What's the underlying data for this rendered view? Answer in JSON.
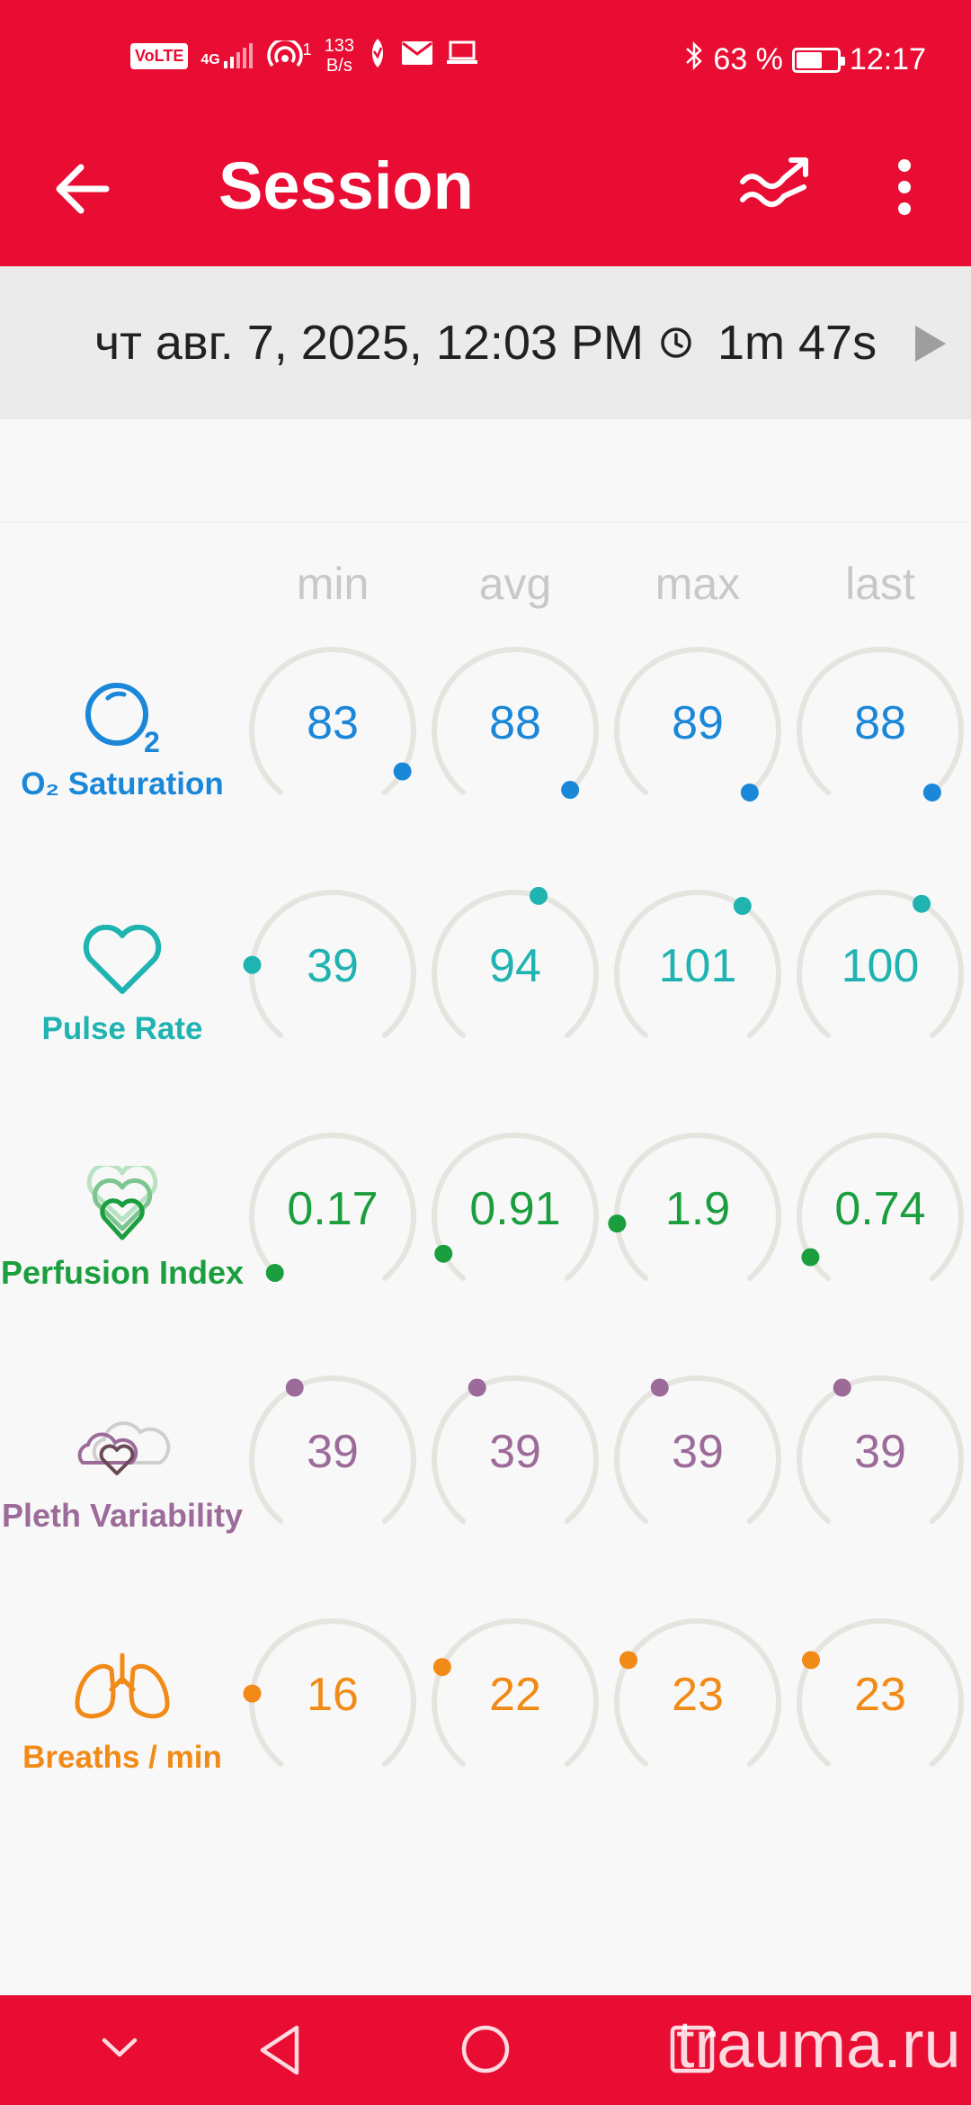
{
  "status_bar": {
    "volte": "VoLTE",
    "network": "4G",
    "hotspot_count": "1",
    "net_speed_value": "133",
    "net_speed_unit": "B/s",
    "battery_percent": "63 %",
    "battery_level": 0.63,
    "time": "12:17"
  },
  "app_bar": {
    "title": "Session"
  },
  "session": {
    "date": "чт авг. 7, 2025, 12:03 PM",
    "duration": "1m 47s"
  },
  "columns": [
    "min",
    "avg",
    "max",
    "last"
  ],
  "metrics": [
    {
      "name": "O₂ Saturation",
      "color": "#1a87d8",
      "values": [
        "83",
        "88",
        "89",
        "88"
      ],
      "levels": [
        0.93,
        0.99,
        1.0,
        1.0
      ]
    },
    {
      "name": "Pulse Rate",
      "color": "#1fb3b1",
      "values": [
        "39",
        "94",
        "101",
        "100"
      ],
      "levels": [
        0.2,
        0.56,
        0.62,
        0.61
      ]
    },
    {
      "name": "Perfusion Index",
      "color": "#1a9e3e",
      "values": [
        "0.17",
        "0.91",
        "1.9",
        "0.74"
      ],
      "levels": [
        0.02,
        0.08,
        0.16,
        0.07
      ]
    },
    {
      "name": "Pleth Variability",
      "color": "#9c6b9a",
      "values": [
        "39",
        "39",
        "39",
        "39"
      ],
      "levels": [
        0.4,
        0.4,
        0.4,
        0.4
      ]
    },
    {
      "name": "Breaths / min",
      "color": "#f18a16",
      "values": [
        "16",
        "22",
        "23",
        "23"
      ],
      "levels": [
        0.2,
        0.27,
        0.29,
        0.29
      ]
    }
  ],
  "watermark": "trauma.ru",
  "icons": {
    "back": "arrow-left-icon",
    "trend": "trending-icon",
    "more": "more-vert-icon",
    "clock": "clock-icon",
    "play": "play-icon"
  }
}
